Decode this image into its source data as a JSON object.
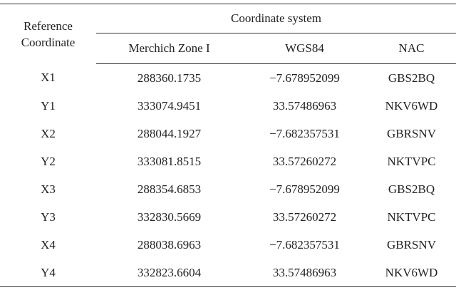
{
  "table": {
    "header": {
      "reference": "Reference Coordinate",
      "group": "Coordinate system",
      "columns": [
        "Merchich Zone I",
        "WGS84",
        "NAC"
      ]
    },
    "rows": [
      [
        "X1",
        "288360.1735",
        "−7.678952099",
        "GBS2BQ"
      ],
      [
        "Y1",
        "333074.9451",
        "33.57486963",
        "NKV6WD"
      ],
      [
        "X2",
        "288044.1927",
        "−7.682357531",
        "GBRSNV"
      ],
      [
        "Y2",
        "333081.8515",
        "33.57260272",
        "NKTVPC"
      ],
      [
        "X3",
        "288354.6853",
        "−7.678952099",
        "GBS2BQ"
      ],
      [
        "Y3",
        "332830.5669",
        "33.57260272",
        "NKTVPC"
      ],
      [
        "X4",
        "288038.6963",
        "−7.682357531",
        "GBRSNV"
      ],
      [
        "Y4",
        "332823.6604",
        "33.57486963",
        "NKV6WD"
      ]
    ]
  }
}
